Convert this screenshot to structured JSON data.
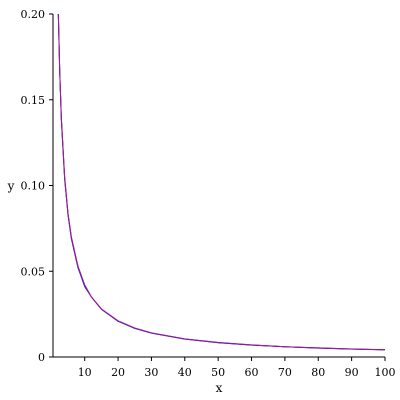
{
  "chart_data": {
    "type": "line",
    "title": "",
    "xlabel": "x",
    "ylabel": "y",
    "xlim": [
      0.5,
      100
    ],
    "ylim": [
      0,
      0.2
    ],
    "grid": false,
    "legend": "none",
    "x_ticks": [
      10,
      20,
      30,
      40,
      50,
      60,
      70,
      80,
      90,
      100
    ],
    "x_tick_labels": [
      "10",
      "20",
      "30",
      "40",
      "50",
      "60",
      "70",
      "80",
      "90",
      "100"
    ],
    "y_ticks": [
      0,
      0.05,
      0.1,
      0.15,
      0.2
    ],
    "y_tick_labels": [
      "0",
      "0.05",
      "0.10",
      "0.15",
      "0.20"
    ],
    "series": [
      {
        "color": "#2e8b3a",
        "x": [
          2.1,
          2.5,
          3,
          4,
          5,
          6,
          8,
          10,
          12,
          15,
          20,
          25,
          30,
          40,
          50,
          60,
          70,
          80,
          90,
          100
        ],
        "y": [
          0.2,
          0.168,
          0.138,
          0.103,
          0.083,
          0.069,
          0.052,
          0.042,
          0.035,
          0.028,
          0.0209,
          0.0167,
          0.014,
          0.0105,
          0.0084,
          0.007,
          0.006,
          0.0052,
          0.0047,
          0.0042
        ]
      },
      {
        "color": "#c8202a",
        "x": [
          2.1,
          2.5,
          3,
          4,
          5,
          6,
          8,
          10,
          12,
          15,
          20,
          25,
          30,
          40,
          50,
          60,
          70,
          80,
          90,
          100
        ],
        "y": [
          0.2,
          0.168,
          0.139,
          0.104,
          0.083,
          0.07,
          0.052,
          0.042,
          0.035,
          0.028,
          0.021,
          0.0168,
          0.014,
          0.0105,
          0.0084,
          0.007,
          0.006,
          0.0053,
          0.0047,
          0.0042
        ]
      },
      {
        "color": "#2a2ad0",
        "x": [
          2.1,
          2.5,
          3,
          4,
          5,
          6,
          8,
          10,
          12,
          15,
          20,
          25,
          30,
          40,
          50,
          60,
          70,
          80,
          90,
          100
        ],
        "y": [
          0.2,
          0.167,
          0.139,
          0.104,
          0.083,
          0.069,
          0.052,
          0.041,
          0.035,
          0.0278,
          0.0208,
          0.0167,
          0.0139,
          0.0104,
          0.0083,
          0.0069,
          0.006,
          0.0052,
          0.0046,
          0.0042
        ]
      },
      {
        "color": "#a0189a",
        "x": [
          2.1,
          2.5,
          3,
          4,
          5,
          6,
          8,
          10,
          12,
          15,
          20,
          25,
          30,
          40,
          50,
          60,
          70,
          80,
          90,
          100
        ],
        "y": [
          0.2,
          0.167,
          0.14,
          0.105,
          0.084,
          0.07,
          0.053,
          0.042,
          0.035,
          0.028,
          0.0211,
          0.0169,
          0.0141,
          0.0106,
          0.0085,
          0.0071,
          0.006,
          0.0053,
          0.0047,
          0.0043
        ]
      }
    ]
  }
}
